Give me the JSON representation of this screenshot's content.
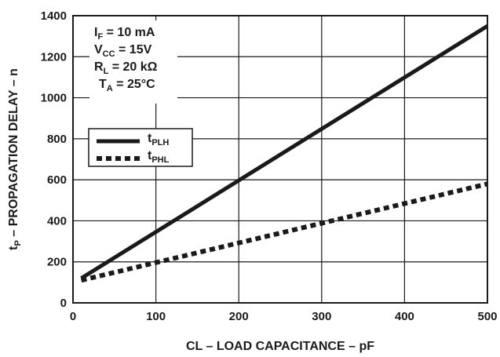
{
  "chart_data": {
    "type": "line",
    "xlabel": "CL – LOAD CAPACITANCE – pF",
    "ylabel": {
      "pre": "t",
      "sub": "P",
      "post": " – PROPAGATION DELAY – n"
    },
    "xlim": [
      0,
      500
    ],
    "ylim": [
      0,
      1400
    ],
    "xticks": [
      0,
      100,
      200,
      300,
      400,
      500
    ],
    "yticks": [
      0,
      200,
      400,
      600,
      800,
      1000,
      1200,
      1400
    ],
    "grid": true,
    "legend_position": "left",
    "conditions": [
      {
        "pre": "I",
        "sub": "F",
        "post": " = 10 mA"
      },
      {
        "pre": "V",
        "sub": "CC",
        "post": " = 15V"
      },
      {
        "pre": "R",
        "sub": "L",
        "post": " = 20 kΩ"
      },
      {
        "pre": "T",
        "sub": "A",
        "post": " = 25°C"
      }
    ],
    "series": [
      {
        "name": {
          "pre": "t",
          "sub": "PLH"
        },
        "style": "solid",
        "x": [
          10,
          500
        ],
        "y": [
          120,
          1350
        ]
      },
      {
        "name": {
          "pre": "t",
          "sub": "PHL"
        },
        "style": "dashed",
        "x": [
          10,
          500
        ],
        "y": [
          110,
          580
        ]
      }
    ]
  }
}
